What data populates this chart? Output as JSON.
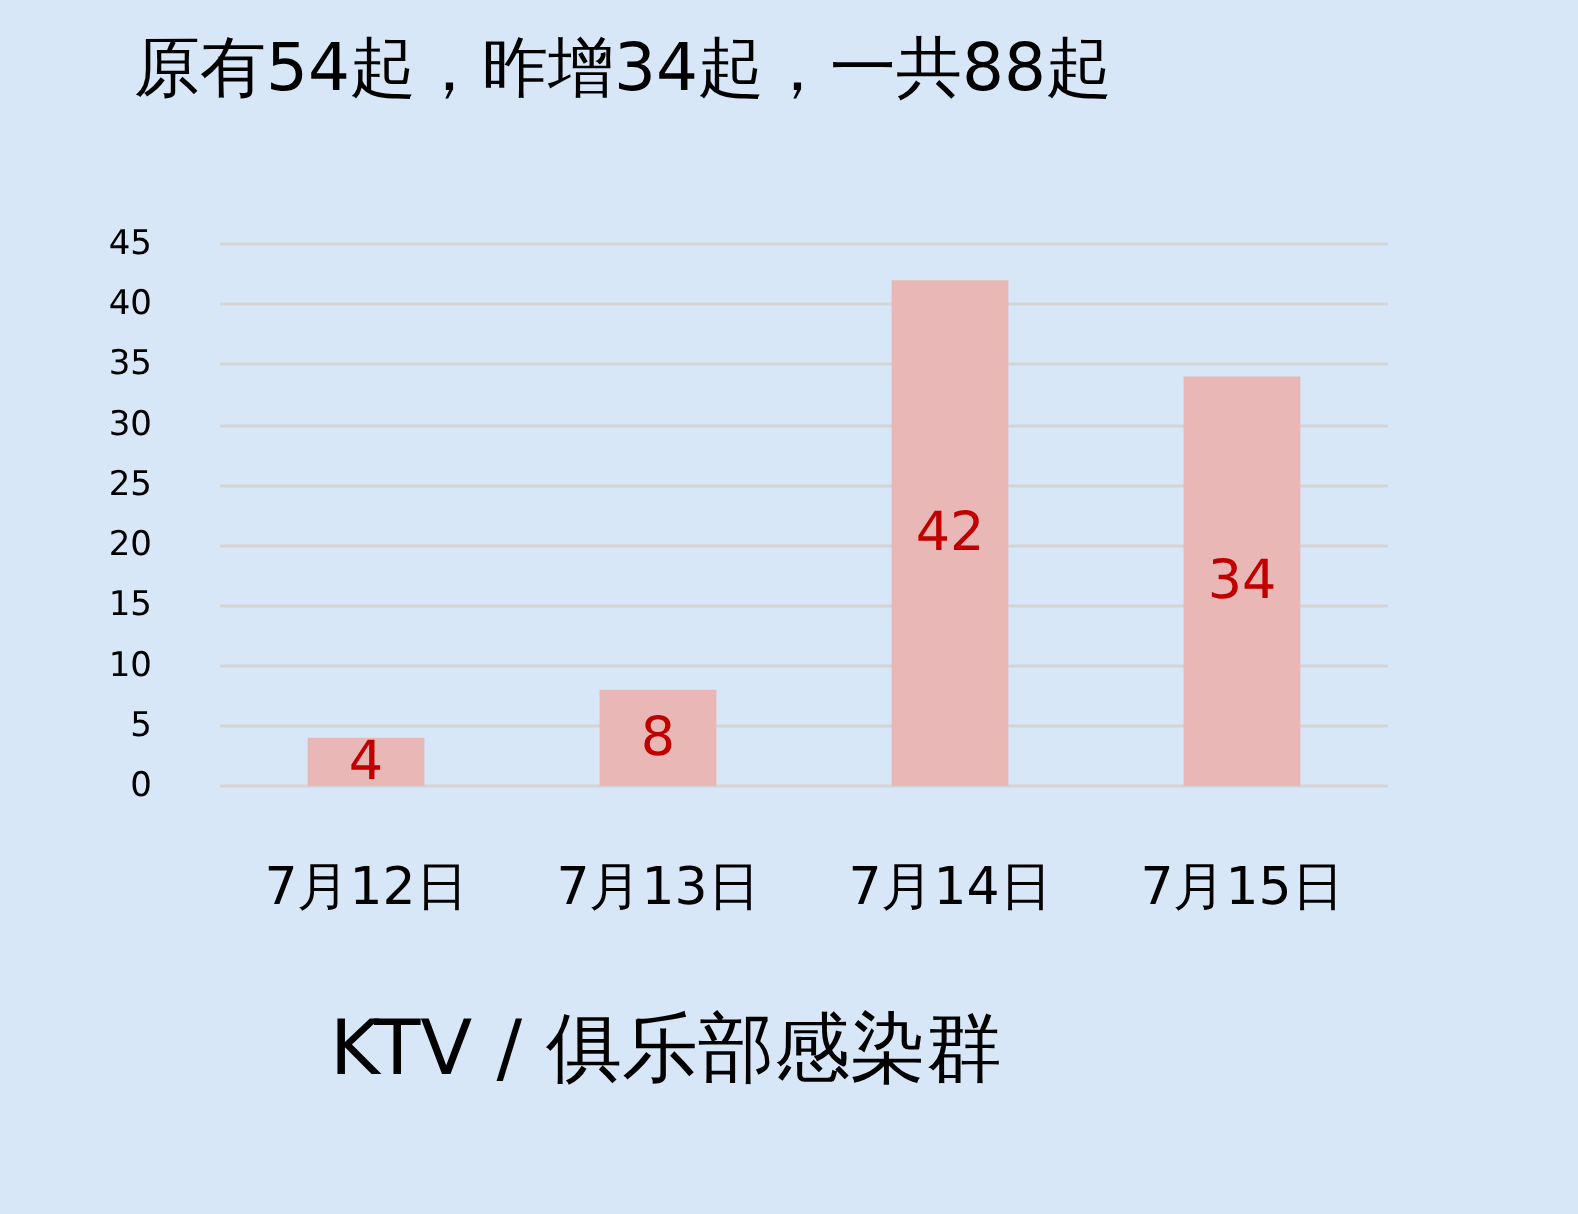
{
  "chart_data": {
    "type": "bar",
    "title": "原有54起，昨增34起，一共88起",
    "categories": [
      "7月12日",
      "7月13日",
      "7月14日",
      "7月15日"
    ],
    "values": [
      4,
      8,
      42,
      34
    ],
    "color": "#e9b7b5",
    "ylim": [
      0,
      45
    ],
    "yticks": [
      0,
      5,
      10,
      15,
      20,
      25,
      30,
      35,
      40,
      45
    ],
    "grid": "y",
    "data_labels": true,
    "annotations": [
      "KTV / 俱乐部感染群"
    ]
  }
}
